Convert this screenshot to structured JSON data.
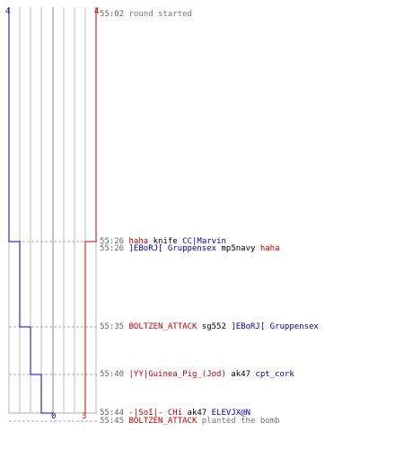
{
  "colors": {
    "team_blue": "#0000cc",
    "team_red": "#cc0000",
    "grid": "#bbbbbb",
    "center_line": "#888888",
    "timestamp": "#666666"
  },
  "timeline": {
    "top_left_score": "4",
    "top_right_score": "4",
    "bottom_blue_score": "0",
    "bottom_red_score": "3"
  },
  "events": [
    {
      "time": "55:02",
      "parts": [
        {
          "text": "round started",
          "style": "msg"
        }
      ]
    },
    {
      "time": "55:26",
      "parts": [
        {
          "text": "haha",
          "style": "red"
        },
        {
          "text": " knife ",
          "style": "w"
        },
        {
          "text": "CC|Marvin",
          "style": "blue"
        }
      ]
    },
    {
      "time": "55:26",
      "parts": [
        {
          "text": "]EBoRJ[ Gruppensex",
          "style": "blue"
        },
        {
          "text": " mp5navy ",
          "style": "w"
        },
        {
          "text": "haha",
          "style": "red"
        }
      ]
    },
    {
      "time": "55:35",
      "parts": [
        {
          "text": "BOLTZEN_ATTACK",
          "style": "red"
        },
        {
          "text": " sg552 ",
          "style": "w"
        },
        {
          "text": "]EBoRJ[ Gruppensex",
          "style": "blue"
        }
      ]
    },
    {
      "time": "55:40",
      "parts": [
        {
          "text": "|YY|Guinea_Pig_(Jod)",
          "style": "red"
        },
        {
          "text": " ak47 ",
          "style": "w"
        },
        {
          "text": "cpt_cork",
          "style": "blue"
        }
      ]
    },
    {
      "time": "55:44",
      "parts": [
        {
          "text": "-|SoI|- CHi",
          "style": "red"
        },
        {
          "text": " ak47 ",
          "style": "w"
        },
        {
          "text": "ELEVJX@N",
          "style": "blue"
        }
      ]
    },
    {
      "time": "55:45",
      "parts": [
        {
          "text": "BOLTZEN_ATTACK",
          "style": "red"
        },
        {
          "text": " planted the bomb",
          "style": "msg"
        }
      ]
    }
  ]
}
